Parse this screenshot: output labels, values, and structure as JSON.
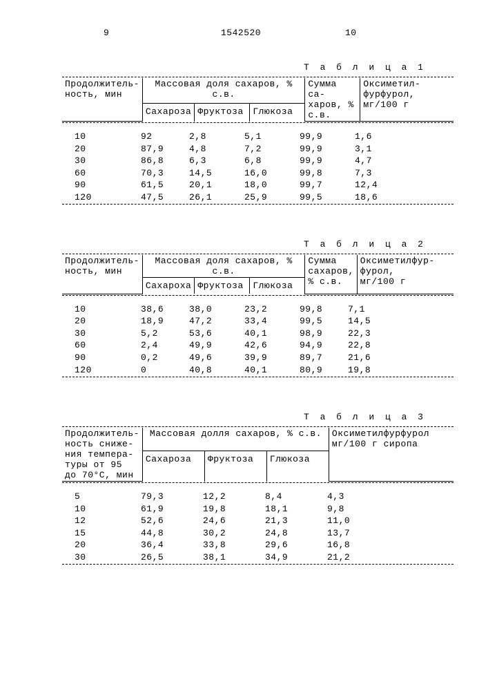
{
  "page_left": "9",
  "doc_id": "1542520",
  "page_right": "10",
  "tables": {
    "t1": {
      "label": "Т а б л и ц а  1",
      "h_duration": "Продолжитель-\nность, мин",
      "h_mass_group": "Массовая доля сахаров, % с.в.",
      "h_sucrose": "Сахароза",
      "h_fructose": "Фруктоза",
      "h_glucose": "Глюкоза",
      "h_sum": "Сумма са-\nхаров, %\nс.в.",
      "h_oxy": "Оксиметил-\nфурфурол,\nмг/100 г",
      "rows": [
        [
          "10",
          "92",
          "2,8",
          "5,1",
          "99,9",
          "1,6"
        ],
        [
          "20",
          "87,9",
          "4,8",
          "7,2",
          "99,9",
          "3,1"
        ],
        [
          "30",
          "86,8",
          "6,3",
          "6,8",
          "99,9",
          "4,7"
        ],
        [
          "60",
          "70,3",
          "14,5",
          "16,0",
          "99,8",
          "7,3"
        ],
        [
          "90",
          "61,5",
          "20,1",
          "18,0",
          "99,7",
          "12,4"
        ],
        [
          "120",
          "47,5",
          "26,1",
          "25,9",
          "99,5",
          "18,6"
        ]
      ]
    },
    "t2": {
      "label": "Т а б л и ц а  2",
      "h_duration": "Продолжитель-\nность, мин",
      "h_mass_group": "Массовая доля сахаров, % с.в.",
      "h_sucrose": "Сахароха",
      "h_fructose": "Фруктоза",
      "h_glucose": "Глюкоза",
      "h_sum": "Сумма\nсахаров,\n% с.в.",
      "h_oxy": "Оксиметилфур-\nфурол,\nмг/100 г",
      "rows": [
        [
          "10",
          "38,6",
          "38,0",
          "23,2",
          "99,8",
          "7,1"
        ],
        [
          "20",
          "18,9",
          "47,2",
          "33,4",
          "99,5",
          "14,5"
        ],
        [
          "30",
          "5,2",
          "53,6",
          "40,1",
          "98,9",
          "22,3"
        ],
        [
          "60",
          "2,4",
          "49,9",
          "42,6",
          "94,9",
          "22,8"
        ],
        [
          "90",
          "0,2",
          "49,6",
          "39,9",
          "89,7",
          "21,6"
        ],
        [
          "120",
          "0",
          "40,8",
          "40,1",
          "80,9",
          "19,8"
        ]
      ]
    },
    "t3": {
      "label": "Т а б л и ц а  3",
      "h_duration": "Продолжитель-\nность сниже-\nния темпера-\nтуры от 95\nдо 70°С, мин",
      "h_mass_group": "Массовая долля сахаров, % с.в.",
      "h_sucrose": "Сахароза",
      "h_fructose": "Фруктоза",
      "h_glucose": "Глюкоза",
      "h_oxy": "Оксиметилфурфурол\nмг/100 г сиропа",
      "rows": [
        [
          "5",
          "79,3",
          "12,2",
          "8,4",
          "4,3"
        ],
        [
          "10",
          "61,9",
          "19,8",
          "18,1",
          "9,8"
        ],
        [
          "12",
          "52,6",
          "24,6",
          "21,3",
          "11,0"
        ],
        [
          "15",
          "44,8",
          "30,2",
          "24,8",
          "13,7"
        ],
        [
          "20",
          "36,4",
          "33,8",
          "29,6",
          "16,8"
        ],
        [
          "30",
          "26,5",
          "38,1",
          "34,9",
          "21,2"
        ]
      ]
    }
  }
}
